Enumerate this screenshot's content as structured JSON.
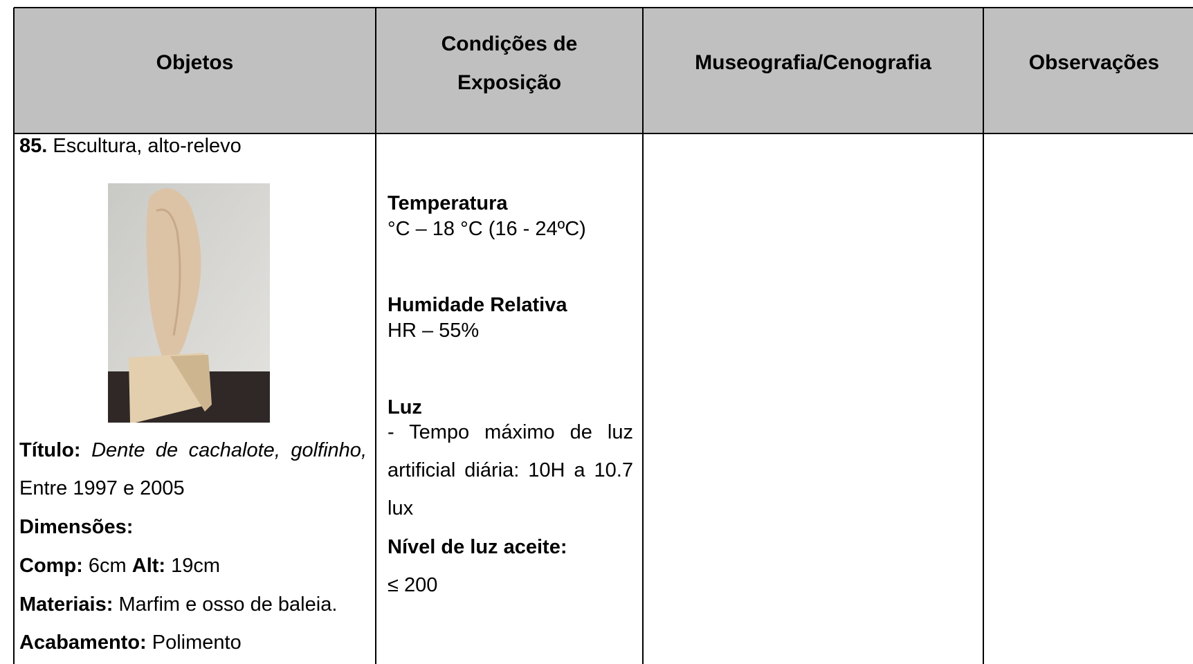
{
  "table": {
    "headers": [
      "Objetos",
      "Condições de",
      "Exposição",
      "Museografia/Cenografia",
      "Observações"
    ],
    "object": {
      "number": "85.",
      "description": "Escultura, alto-relevo",
      "title_label": "Título:",
      "title_italic": "Dente de cachalote, golfinho,",
      "title_date": "Entre 1997 e 2005",
      "dimensions_label": "Dimensões:",
      "length_label": "Comp:",
      "length": "6cm",
      "height_label": "Alt:",
      "height": "19cm",
      "materials_label": "Materiais:",
      "materials": "Marfim e osso de baleia.",
      "finish_label": "Acabamento:",
      "finish": "Polimento"
    },
    "conditions": {
      "temperature_label": "Temperatura",
      "temperature": "°C – 18 °C (16 - 24ºC)",
      "humidity_label": "Humidade Relativa",
      "humidity": "HR – 55%",
      "light_label": "Luz",
      "light": "- Tempo máximo de luz artificial diária: 10H a 10.7 lux",
      "light_level_label": "Nível de luz aceite:",
      "light_level": "≤ 200"
    }
  }
}
